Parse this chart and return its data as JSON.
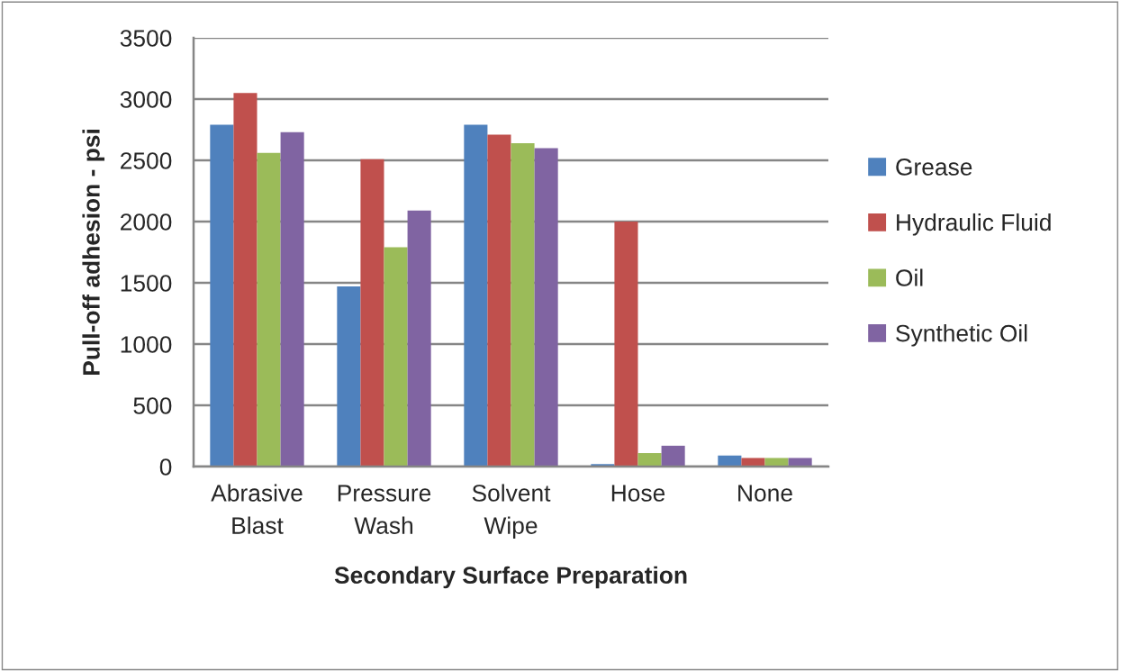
{
  "chart_data": {
    "type": "bar",
    "xlabel": "Secondary Surface Preparation",
    "ylabel": "Pull-off adhesion - psi",
    "categories": [
      "Abrasive\nBlast",
      "Pressure\nWash",
      "Solvent\nWipe",
      "Hose",
      "None"
    ],
    "series": [
      {
        "name": "Grease",
        "color": "#4f81bd",
        "values": [
          2790,
          1470,
          2790,
          20,
          90
        ]
      },
      {
        "name": "Hydraulic Fluid",
        "color": "#c0504d",
        "values": [
          3050,
          2510,
          2710,
          2000,
          70
        ]
      },
      {
        "name": "Oil",
        "color": "#9bbb59",
        "values": [
          2560,
          1790,
          2640,
          110,
          70
        ]
      },
      {
        "name": "Synthetic Oil",
        "color": "#8064a2",
        "values": [
          2730,
          2090,
          2600,
          170,
          70
        ]
      }
    ],
    "ylim": [
      0,
      3500
    ],
    "yticks": [
      0,
      500,
      1000,
      1500,
      2000,
      2500,
      3000,
      3500
    ],
    "grid": "y",
    "legend": "right"
  }
}
